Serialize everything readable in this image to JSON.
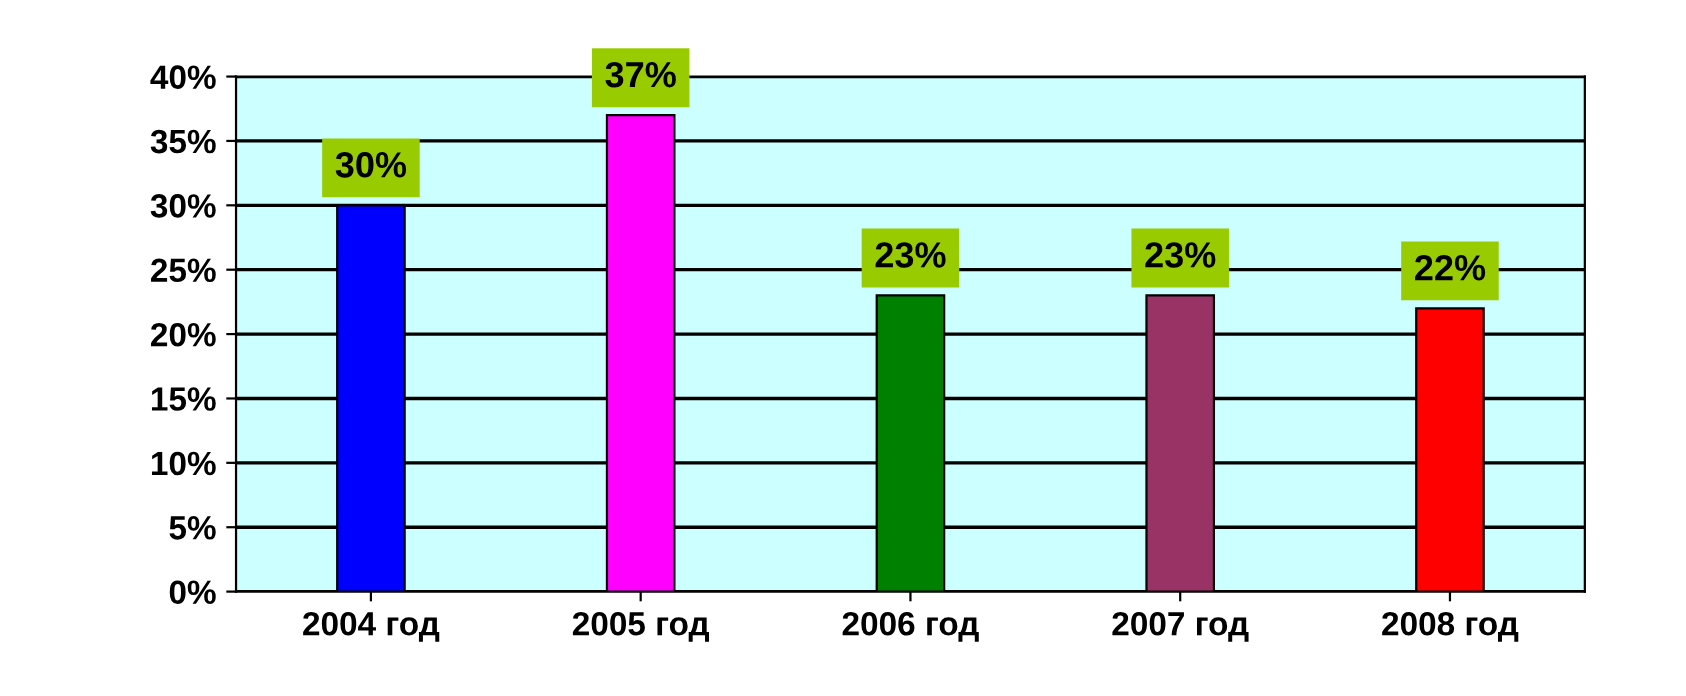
{
  "chart_data": {
    "type": "bar",
    "categories": [
      "2004 год",
      "2005 год",
      "2006 год",
      "2007 год",
      "2008 год"
    ],
    "values": [
      30,
      37,
      23,
      23,
      22
    ],
    "colors": [
      "#0000ff",
      "#ff00ff",
      "#008000",
      "#993366",
      "#ff0000"
    ],
    "value_labels": [
      "30%",
      "37%",
      "23%",
      "23%",
      "22%"
    ],
    "ylim": [
      0,
      40
    ],
    "yticks": [
      {
        "value": 0,
        "label": "0%"
      },
      {
        "value": 5,
        "label": "5%"
      },
      {
        "value": 10,
        "label": "10%"
      },
      {
        "value": 15,
        "label": "15%"
      },
      {
        "value": 20,
        "label": "20%"
      },
      {
        "value": 25,
        "label": "25%"
      },
      {
        "value": 30,
        "label": "30%"
      },
      {
        "value": 35,
        "label": "35%"
      },
      {
        "value": 40,
        "label": "40%"
      }
    ],
    "grid": "y",
    "legend": false
  }
}
